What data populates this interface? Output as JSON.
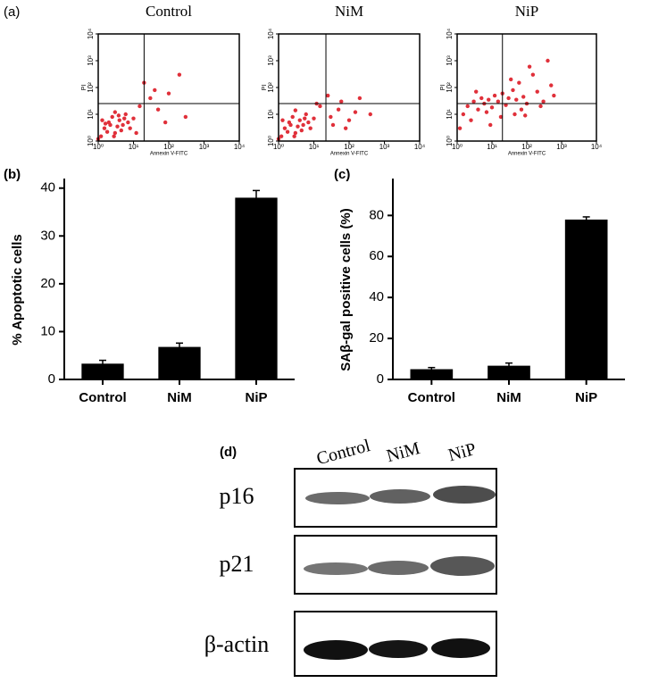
{
  "chart_data": [
    {
      "type": "scatter",
      "panel": "(a)",
      "title": "Control",
      "xlabel": "Annexin V-FITC",
      "ylabel": "PI",
      "log": true,
      "color": "#e0303a",
      "xlim": [
        1,
        10000
      ],
      "ylim": [
        1,
        10000
      ],
      "xticks": [
        {
          "value": 1,
          "label": "10⁰"
        },
        {
          "value": 10,
          "label": "10¹"
        },
        {
          "value": 100,
          "label": "10²"
        },
        {
          "value": 1000,
          "label": "10³"
        },
        {
          "value": 10000,
          "label": "10⁴"
        }
      ],
      "yticks": [
        {
          "value": 1,
          "label": "10⁰"
        },
        {
          "value": 10,
          "label": "10¹"
        },
        {
          "value": 100,
          "label": "10²"
        },
        {
          "value": 1000,
          "label": "10³"
        },
        {
          "value": 10000,
          "label": "10⁴"
        }
      ],
      "gates": {
        "x": 20,
        "y": 25
      },
      "x": [
        1.5,
        2,
        3,
        4,
        2.5,
        5,
        1.2,
        6,
        3,
        8,
        1.8,
        10,
        2.2,
        4.5,
        1.3,
        7,
        3.5,
        15,
        30,
        50,
        100,
        200,
        20,
        80,
        300,
        1,
        2.8,
        5.5,
        1.6,
        3.8,
        12,
        40
      ],
      "y": [
        3,
        5,
        2,
        6,
        8,
        4,
        1.5,
        10,
        12,
        3,
        2.2,
        7,
        4,
        2.5,
        6,
        5,
        3.5,
        20,
        40,
        15,
        60,
        300,
        150,
        5,
        8,
        1.2,
        1.5,
        7,
        4.5,
        9,
        2,
        80
      ]
    },
    {
      "type": "scatter",
      "title": "NiM",
      "xlabel": "Annexin V-FITC",
      "ylabel": "PI",
      "log": true,
      "color": "#e0303a",
      "xlim": [
        1,
        10000
      ],
      "ylim": [
        1,
        10000
      ],
      "xticks": [
        {
          "value": 1,
          "label": "10⁰"
        },
        {
          "value": 10,
          "label": "10¹"
        },
        {
          "value": 100,
          "label": "10²"
        },
        {
          "value": 1000,
          "label": "10³"
        },
        {
          "value": 10000,
          "label": "10⁴"
        }
      ],
      "yticks": [
        {
          "value": 1,
          "label": "10⁰"
        },
        {
          "value": 10,
          "label": "10¹"
        },
        {
          "value": 100,
          "label": "10²"
        },
        {
          "value": 1000,
          "label": "10³"
        },
        {
          "value": 10000,
          "label": "10⁴"
        }
      ],
      "gates": {
        "x": 22,
        "y": 25
      },
      "x": [
        1.5,
        2,
        3,
        4,
        2.5,
        5,
        1.2,
        6,
        3,
        8,
        1.8,
        10,
        2.2,
        4.5,
        1.3,
        7,
        3.5,
        15,
        30,
        50,
        100,
        200,
        25,
        80,
        400,
        1,
        2.8,
        5.5,
        60,
        150,
        35,
        12
      ],
      "y": [
        3,
        5,
        2,
        6,
        8,
        4,
        1.5,
        10,
        14,
        3,
        2.2,
        7,
        4,
        2.5,
        6,
        5,
        3.5,
        20,
        8,
        15,
        6,
        40,
        50,
        3,
        10,
        1.2,
        1.5,
        7,
        30,
        12,
        4,
        25
      ]
    },
    {
      "type": "scatter",
      "title": "NiP",
      "xlabel": "Annexin V-FITC",
      "ylabel": "PI",
      "log": true,
      "color": "#e0303a",
      "xlim": [
        1,
        10000
      ],
      "ylim": [
        1,
        10000
      ],
      "xticks": [
        {
          "value": 1,
          "label": "10⁰"
        },
        {
          "value": 10,
          "label": "10¹"
        },
        {
          "value": 100,
          "label": "10²"
        },
        {
          "value": 1000,
          "label": "10³"
        },
        {
          "value": 10000,
          "label": "10⁴"
        }
      ],
      "yticks": [
        {
          "value": 1,
          "label": "10⁰"
        },
        {
          "value": 10,
          "label": "10¹"
        },
        {
          "value": 100,
          "label": "10²"
        },
        {
          "value": 1000,
          "label": "10³"
        },
        {
          "value": 10000,
          "label": "10⁴"
        }
      ],
      "gates": {
        "x": 20,
        "y": 25
      },
      "x": [
        2,
        3,
        4,
        5,
        6,
        8,
        10,
        12,
        15,
        20,
        25,
        30,
        40,
        50,
        60,
        80,
        100,
        150,
        200,
        300,
        500,
        1.5,
        2.5,
        7,
        18,
        35,
        70,
        120,
        250,
        600,
        9,
        45,
        1.2,
        3.5,
        90,
        400
      ],
      "y": [
        20,
        30,
        15,
        40,
        25,
        35,
        18,
        50,
        30,
        60,
        22,
        40,
        80,
        35,
        150,
        45,
        25,
        300,
        70,
        30,
        120,
        10,
        6,
        12,
        8,
        200,
        15,
        600,
        20,
        50,
        4,
        10,
        3,
        70,
        9,
        1000
      ]
    },
    {
      "type": "bar",
      "panel": "(b)",
      "ylabel": "% Apoptotic cells",
      "color": "#000000",
      "categories": [
        "Control",
        "NiM",
        "NiP"
      ],
      "values": [
        3.3,
        6.8,
        38
      ],
      "errors": [
        0.7,
        0.8,
        1.5
      ],
      "ylim": [
        0,
        42
      ],
      "yticks": [
        0,
        10,
        20,
        30,
        40
      ]
    },
    {
      "type": "bar",
      "panel": "(c)",
      "ylabel": "SAβ-gal positive cells (%)",
      "color": "#000000",
      "categories": [
        "Control",
        "NiM",
        "NiP"
      ],
      "values": [
        5,
        6.7,
        78
      ],
      "errors": [
        0.8,
        1.3,
        1.3
      ],
      "ylim": [
        0,
        98
      ],
      "yticks": [
        0,
        20,
        40,
        60,
        80
      ]
    }
  ],
  "blot": {
    "label": "(d)",
    "lanes": [
      "Control",
      "NiM",
      "NiP"
    ],
    "rows": [
      "p16",
      "p21",
      "β-actin"
    ]
  }
}
